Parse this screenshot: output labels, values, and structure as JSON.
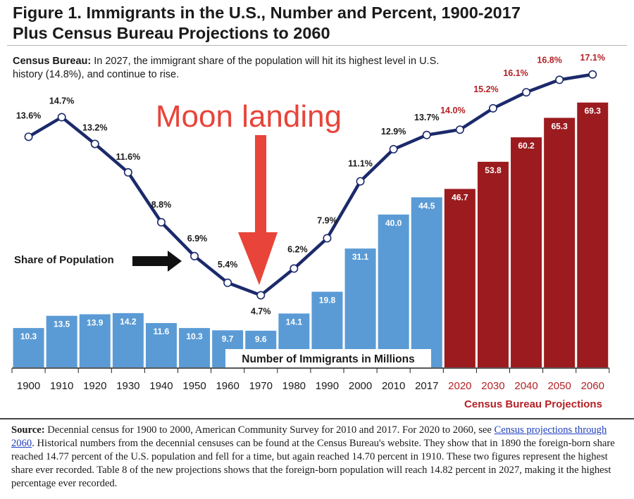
{
  "title_line1": "Figure 1. Immigrants in the U.S., Number and Percent, 1900-2017",
  "title_line2": "Plus Census Bureau Projections to 2060",
  "subtitle_label": "Census Bureau:",
  "subtitle_text": " In 2027, the immigrant share of the population will hit its highest level in U.S. history (14.8%), and continue to rise.",
  "annotation_moon": "Moon landing",
  "source": {
    "label": "Source:",
    "text_before": " Decennial census for 1900 to 2000, American Community Survey for 2010 and 2017. For 2020 to 2060, see ",
    "link_text": "Census projections through 2060",
    "text_after": ". Historical numbers from the decennial censuses can be found at the Census Bureau's website. They show that in 1890 the foreign-born share reached 14.77 percent of the U.S. population and fell for a time, but again reached 14.70 percent in 1910. These two figures represent the highest share ever recorded. Table 8 of the new projections shows that the foreign-born population will reach 14.82 percent in 2027, making it the highest percentage ever recorded."
  },
  "colors": {
    "historical_bar": "#5b9bd5",
    "projection_bar": "#9b1b1f",
    "line": "#1b2a6b",
    "projection_text": "#b32125",
    "moon": "#e8443a"
  },
  "chart_data": {
    "type": "bar",
    "title": "Figure 1. Immigrants in the U.S., Number and Percent, 1900-2017 Plus Census Bureau Projections to 2060",
    "categories": [
      "1900",
      "1910",
      "1920",
      "1930",
      "1940",
      "1950",
      "1960",
      "1970",
      "1980",
      "1990",
      "2000",
      "2010",
      "2017",
      "2020",
      "2030",
      "2040",
      "2050",
      "2060"
    ],
    "projection_start_index": 13,
    "series": [
      {
        "name": "Number of Immigrants in Millions",
        "kind": "bar",
        "values": [
          10.3,
          13.5,
          13.9,
          14.2,
          11.6,
          10.3,
          9.7,
          9.6,
          14.1,
          19.8,
          31.1,
          40.0,
          44.5,
          46.7,
          53.8,
          60.2,
          65.3,
          69.3
        ],
        "labels": [
          "10.3",
          "13.5",
          "13.9",
          "14.2",
          "11.6",
          "10.3",
          "9.7",
          "9.6",
          "14.1",
          "19.8",
          "31.1",
          "40.0",
          "44.5",
          "46.7",
          "53.8",
          "60.2",
          "65.3",
          "69.3"
        ]
      },
      {
        "name": "Share of Population",
        "kind": "line",
        "values": [
          13.6,
          14.7,
          13.2,
          11.6,
          8.8,
          6.9,
          5.4,
          4.7,
          6.2,
          7.9,
          11.1,
          12.9,
          13.7,
          14.0,
          15.2,
          16.1,
          16.8,
          17.1
        ],
        "labels": [
          "13.6%",
          "14.7%",
          "13.2%",
          "11.6%",
          "8.8%",
          "6.9%",
          "5.4%",
          "4.7%",
          "6.2%",
          "7.9%",
          "11.1%",
          "12.9%",
          "13.7%",
          "14.0%",
          "15.2%",
          "16.1%",
          "16.8%",
          "17.1%"
        ]
      }
    ],
    "bar_axis_label": "Number of Immigrants in Millions",
    "line_series_label": "Share of Population",
    "projection_label": "Census Bureau Projections",
    "bar_ylim": [
      0,
      75
    ],
    "line_ylim": [
      4.2,
      17.7
    ]
  }
}
